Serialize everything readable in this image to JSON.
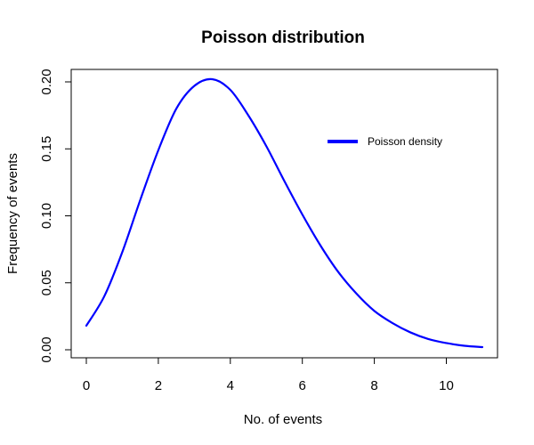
{
  "chart_data": {
    "type": "line",
    "title": "Poisson distribution",
    "xlabel": "No. of events",
    "ylabel": "Frequency of events",
    "xlim": [
      0,
      11
    ],
    "ylim": [
      0,
      0.2
    ],
    "x_ticks": [
      0,
      2,
      4,
      6,
      8,
      10
    ],
    "x_tick_labels": [
      "0",
      "2",
      "4",
      "6",
      "8",
      "10"
    ],
    "y_ticks": [
      0,
      0.05,
      0.1,
      0.15,
      0.2
    ],
    "y_tick_labels": [
      "0.00",
      "0.05",
      "0.10",
      "0.15",
      "0.20"
    ],
    "grid": false,
    "legend_position": "top-right",
    "series": [
      {
        "name": "Poisson density",
        "color": "#0000ff",
        "x": [
          0,
          0.5,
          1,
          1.5,
          2,
          2.5,
          3,
          3.5,
          4,
          4.5,
          5,
          5.5,
          6,
          6.5,
          7,
          7.5,
          8,
          8.5,
          9,
          9.5,
          10,
          10.5,
          11
        ],
        "y": [
          0.018,
          0.04,
          0.073,
          0.112,
          0.149,
          0.18,
          0.197,
          0.202,
          0.194,
          0.175,
          0.152,
          0.126,
          0.101,
          0.078,
          0.058,
          0.042,
          0.029,
          0.02,
          0.013,
          0.008,
          0.005,
          0.003,
          0.002
        ]
      }
    ]
  }
}
